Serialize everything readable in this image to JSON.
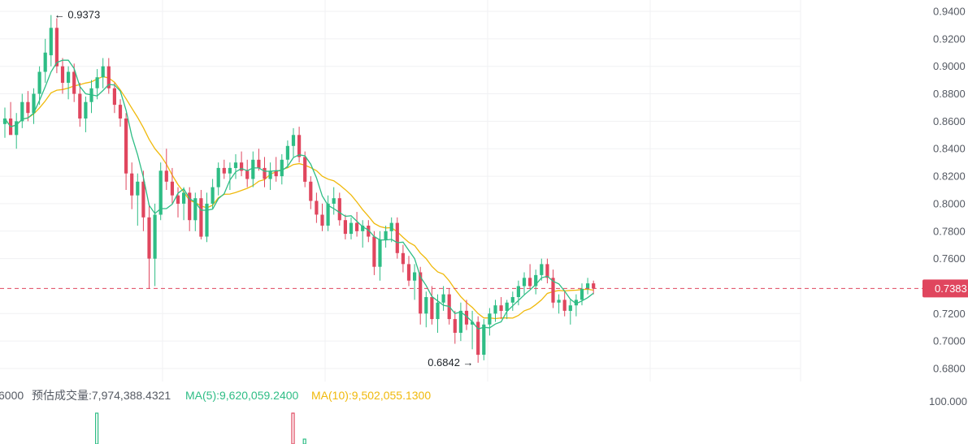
{
  "chart_data": {
    "type": "candlestick",
    "price_axis": {
      "ylim": [
        0.68,
        0.94
      ],
      "ticks": [
        {
          "value": 0.94,
          "label": "0.9400"
        },
        {
          "value": 0.92,
          "label": "0.9200"
        },
        {
          "value": 0.9,
          "label": "0.9000"
        },
        {
          "value": 0.88,
          "label": "0.8800"
        },
        {
          "value": 0.86,
          "label": "0.8600"
        },
        {
          "value": 0.84,
          "label": "0.8400"
        },
        {
          "value": 0.82,
          "label": "0.8200"
        },
        {
          "value": 0.8,
          "label": "0.8000"
        },
        {
          "value": 0.78,
          "label": "0.7800"
        },
        {
          "value": 0.76,
          "label": "0.7600"
        },
        {
          "value": 0.72,
          "label": "0.7200"
        },
        {
          "value": 0.7,
          "label": "0.7000"
        },
        {
          "value": 0.68,
          "label": "0.6800"
        }
      ]
    },
    "current_price": {
      "value": 0.7383,
      "label": "0.7383"
    },
    "annotations": {
      "high": {
        "value": 0.9373,
        "label": "← 0.9373"
      },
      "low": {
        "value": 0.6842,
        "label": "0.6842 →"
      }
    },
    "candles": [
      [
        0.858,
        0.87,
        0.848,
        0.862
      ],
      [
        0.862,
        0.874,
        0.852,
        0.85
      ],
      [
        0.85,
        0.866,
        0.84,
        0.86
      ],
      [
        0.86,
        0.88,
        0.855,
        0.874
      ],
      [
        0.874,
        0.882,
        0.86,
        0.866
      ],
      [
        0.866,
        0.884,
        0.858,
        0.88
      ],
      [
        0.88,
        0.9,
        0.872,
        0.896
      ],
      [
        0.896,
        0.92,
        0.888,
        0.91
      ],
      [
        0.908,
        0.9373,
        0.9,
        0.928
      ],
      [
        0.928,
        0.935,
        0.895,
        0.9
      ],
      [
        0.9,
        0.906,
        0.88,
        0.888
      ],
      [
        0.888,
        0.9,
        0.876,
        0.896
      ],
      [
        0.896,
        0.902,
        0.874,
        0.88
      ],
      [
        0.88,
        0.888,
        0.856,
        0.862
      ],
      [
        0.862,
        0.878,
        0.852,
        0.874
      ],
      [
        0.874,
        0.89,
        0.866,
        0.884
      ],
      [
        0.884,
        0.898,
        0.876,
        0.892
      ],
      [
        0.892,
        0.906,
        0.884,
        0.9
      ],
      [
        0.9,
        0.906,
        0.88,
        0.884
      ],
      [
        0.884,
        0.888,
        0.866,
        0.872
      ],
      [
        0.872,
        0.876,
        0.856,
        0.862
      ],
      [
        0.862,
        0.866,
        0.81,
        0.822
      ],
      [
        0.822,
        0.83,
        0.796,
        0.806
      ],
      [
        0.806,
        0.822,
        0.784,
        0.816
      ],
      [
        0.816,
        0.824,
        0.78,
        0.79
      ],
      [
        0.79,
        0.8,
        0.738,
        0.76
      ],
      [
        0.76,
        0.8,
        0.74,
        0.792
      ],
      [
        0.792,
        0.83,
        0.788,
        0.824
      ],
      [
        0.824,
        0.84,
        0.81,
        0.816
      ],
      [
        0.816,
        0.826,
        0.8,
        0.806
      ],
      [
        0.806,
        0.812,
        0.79,
        0.8
      ],
      [
        0.8,
        0.812,
        0.788,
        0.808
      ],
      [
        0.808,
        0.812,
        0.78,
        0.788
      ],
      [
        0.788,
        0.808,
        0.78,
        0.804
      ],
      [
        0.804,
        0.81,
        0.774,
        0.776
      ],
      [
        0.776,
        0.808,
        0.772,
        0.8
      ],
      [
        0.8,
        0.818,
        0.796,
        0.812
      ],
      [
        0.812,
        0.83,
        0.806,
        0.826
      ],
      [
        0.826,
        0.832,
        0.818,
        0.822
      ],
      [
        0.822,
        0.83,
        0.81,
        0.826
      ],
      [
        0.826,
        0.836,
        0.818,
        0.83
      ],
      [
        0.83,
        0.838,
        0.82,
        0.824
      ],
      [
        0.824,
        0.832,
        0.812,
        0.818
      ],
      [
        0.818,
        0.838,
        0.812,
        0.832
      ],
      [
        0.832,
        0.84,
        0.824,
        0.826
      ],
      [
        0.826,
        0.834,
        0.812,
        0.818
      ],
      [
        0.818,
        0.83,
        0.81,
        0.824
      ],
      [
        0.824,
        0.834,
        0.816,
        0.82
      ],
      [
        0.82,
        0.836,
        0.814,
        0.832
      ],
      [
        0.832,
        0.846,
        0.826,
        0.842
      ],
      [
        0.842,
        0.855,
        0.834,
        0.85
      ],
      [
        0.85,
        0.856,
        0.83,
        0.834
      ],
      [
        0.834,
        0.838,
        0.812,
        0.816
      ],
      [
        0.816,
        0.82,
        0.796,
        0.802
      ],
      [
        0.802,
        0.808,
        0.786,
        0.792
      ],
      [
        0.792,
        0.8,
        0.78,
        0.784
      ],
      [
        0.784,
        0.806,
        0.78,
        0.8
      ],
      [
        0.8,
        0.812,
        0.792,
        0.804
      ],
      [
        0.804,
        0.808,
        0.784,
        0.788
      ],
      [
        0.788,
        0.792,
        0.774,
        0.778
      ],
      [
        0.778,
        0.79,
        0.774,
        0.786
      ],
      [
        0.786,
        0.794,
        0.776,
        0.78
      ],
      [
        0.78,
        0.788,
        0.768,
        0.784
      ],
      [
        0.784,
        0.788,
        0.772,
        0.776
      ],
      [
        0.776,
        0.78,
        0.748,
        0.754
      ],
      [
        0.754,
        0.78,
        0.744,
        0.774
      ],
      [
        0.774,
        0.784,
        0.768,
        0.78
      ],
      [
        0.78,
        0.79,
        0.772,
        0.786
      ],
      [
        0.786,
        0.79,
        0.76,
        0.764
      ],
      [
        0.764,
        0.77,
        0.75,
        0.756
      ],
      [
        0.756,
        0.762,
        0.74,
        0.744
      ],
      [
        0.744,
        0.756,
        0.73,
        0.75
      ],
      [
        0.75,
        0.754,
        0.712,
        0.72
      ],
      [
        0.72,
        0.736,
        0.71,
        0.732
      ],
      [
        0.732,
        0.74,
        0.712,
        0.716
      ],
      [
        0.716,
        0.734,
        0.706,
        0.728
      ],
      [
        0.728,
        0.74,
        0.722,
        0.734
      ],
      [
        0.734,
        0.738,
        0.712,
        0.716
      ],
      [
        0.716,
        0.722,
        0.698,
        0.706
      ],
      [
        0.706,
        0.728,
        0.7,
        0.722
      ],
      [
        0.722,
        0.73,
        0.708,
        0.712
      ],
      [
        0.712,
        0.722,
        0.694,
        0.714
      ],
      [
        0.714,
        0.718,
        0.6842,
        0.69
      ],
      [
        0.69,
        0.716,
        0.686,
        0.712
      ],
      [
        0.712,
        0.724,
        0.704,
        0.72
      ],
      [
        0.72,
        0.73,
        0.714,
        0.726
      ],
      [
        0.726,
        0.732,
        0.716,
        0.722
      ],
      [
        0.722,
        0.73,
        0.716,
        0.728
      ],
      [
        0.728,
        0.736,
        0.722,
        0.732
      ],
      [
        0.732,
        0.744,
        0.726,
        0.74
      ],
      [
        0.74,
        0.75,
        0.734,
        0.746
      ],
      [
        0.746,
        0.756,
        0.738,
        0.74
      ],
      [
        0.74,
        0.752,
        0.734,
        0.748
      ],
      [
        0.748,
        0.76,
        0.744,
        0.756
      ],
      [
        0.756,
        0.76,
        0.742,
        0.746
      ],
      [
        0.746,
        0.752,
        0.724,
        0.728
      ],
      [
        0.728,
        0.734,
        0.72,
        0.73
      ],
      [
        0.73,
        0.736,
        0.718,
        0.722
      ],
      [
        0.722,
        0.73,
        0.712,
        0.726
      ],
      [
        0.726,
        0.734,
        0.718,
        0.73
      ],
      [
        0.73,
        0.742,
        0.726,
        0.738
      ],
      [
        0.738,
        0.746,
        0.734,
        0.742
      ],
      [
        0.742,
        0.744,
        0.734,
        0.7383
      ]
    ],
    "ma_short": {
      "name": "MA(5)",
      "color": "#2ebd85"
    },
    "ma_long": {
      "name": "MA(10)",
      "color": "#f0b90b"
    },
    "volume_panel": {
      "left_cut_label": "6000",
      "estimate_label": "预估成交量:7,974,388.4321",
      "ma5_label": "MA(5):9,620,059.2400",
      "ma10_label": "MA(10):9,502,055.1300",
      "axis_label": "100.000",
      "visible_bars": [
        {
          "index": 8,
          "direction": "up"
        },
        {
          "index": 25,
          "direction": "down"
        },
        {
          "index": 26,
          "direction": "up"
        }
      ]
    },
    "colors": {
      "up": "#2ebd85",
      "down": "#e0465e",
      "grid": "#f0f1f3",
      "current_line": "#e0465e",
      "axis_text": "#555a63"
    }
  }
}
